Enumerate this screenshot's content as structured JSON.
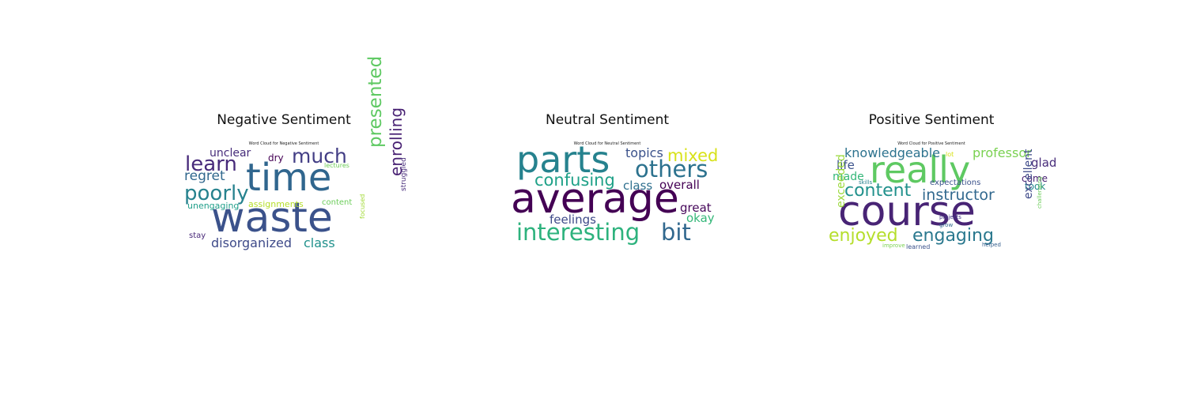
{
  "chart_data": [
    {
      "type": "wordcloud",
      "title": "Negative Sentiment",
      "subtitle": "Word Cloud for Negative Sentiment",
      "words": [
        {
          "text": "waste",
          "weight": 1.0,
          "color": "#3b528b"
        },
        {
          "text": "time",
          "weight": 0.92,
          "color": "#30668e"
        },
        {
          "text": "presented",
          "weight": 0.45,
          "color": "#5ec962",
          "vertical": true
        },
        {
          "text": "poorly",
          "weight": 0.5,
          "color": "#26828e"
        },
        {
          "text": "learn",
          "weight": 0.5,
          "color": "#472a7a"
        },
        {
          "text": "much",
          "weight": 0.48,
          "color": "#433e85"
        },
        {
          "text": "enrolling",
          "weight": 0.38,
          "color": "#482173",
          "vertical": true
        },
        {
          "text": "regret",
          "weight": 0.33,
          "color": "#31688e"
        },
        {
          "text": "disorganized",
          "weight": 0.3,
          "color": "#3e4a89"
        },
        {
          "text": "class",
          "weight": 0.3,
          "color": "#21918c"
        },
        {
          "text": "unclear",
          "weight": 0.26,
          "color": "#472d7b"
        },
        {
          "text": "dry",
          "weight": 0.24,
          "color": "#440154"
        },
        {
          "text": "unengaging",
          "weight": 0.22,
          "color": "#1f9e89"
        },
        {
          "text": "assignments",
          "weight": 0.22,
          "color": "#b5de2b"
        },
        {
          "text": "content",
          "weight": 0.2,
          "color": "#6ccd5a"
        },
        {
          "text": "stay",
          "weight": 0.2,
          "color": "#482878"
        },
        {
          "text": "struggled",
          "weight": 0.18,
          "color": "#472c7a",
          "vertical": true
        },
        {
          "text": "focused",
          "weight": 0.16,
          "color": "#a2da37",
          "vertical": true
        },
        {
          "text": "lectures",
          "weight": 0.15,
          "color": "#6ece58"
        }
      ]
    },
    {
      "type": "wordcloud",
      "title": "Neutral Sentiment",
      "subtitle": "Word Cloud for Neutral Sentiment",
      "words": [
        {
          "text": "average",
          "weight": 1.0,
          "color": "#440154"
        },
        {
          "text": "parts",
          "weight": 0.88,
          "color": "#26828e"
        },
        {
          "text": "interesting",
          "weight": 0.55,
          "color": "#2db27d"
        },
        {
          "text": "bit",
          "weight": 0.55,
          "color": "#31688e"
        },
        {
          "text": "others",
          "weight": 0.55,
          "color": "#2c728e"
        },
        {
          "text": "mixed",
          "weight": 0.4,
          "color": "#d8e219"
        },
        {
          "text": "confusing",
          "weight": 0.4,
          "color": "#1fa188"
        },
        {
          "text": "topics",
          "weight": 0.3,
          "color": "#3b528b"
        },
        {
          "text": "class",
          "weight": 0.28,
          "color": "#2e6f8e"
        },
        {
          "text": "overall",
          "weight": 0.28,
          "color": "#440154"
        },
        {
          "text": "great",
          "weight": 0.28,
          "color": "#46075a"
        },
        {
          "text": "feelings",
          "weight": 0.28,
          "color": "#3e4a89"
        },
        {
          "text": "okay",
          "weight": 0.28,
          "color": "#35b779"
        }
      ]
    },
    {
      "type": "wordcloud",
      "title": "Positive Sentiment",
      "subtitle": "Word Cloud for Positive Sentiment",
      "words": [
        {
          "text": "course",
          "weight": 1.0,
          "color": "#482475"
        },
        {
          "text": "really",
          "weight": 0.88,
          "color": "#5ec962"
        },
        {
          "text": "content",
          "weight": 0.43,
          "color": "#21918c"
        },
        {
          "text": "instructor",
          "weight": 0.36,
          "color": "#31688e"
        },
        {
          "text": "enjoyed",
          "weight": 0.43,
          "color": "#b5de2b"
        },
        {
          "text": "engaging",
          "weight": 0.43,
          "color": "#2a788e"
        },
        {
          "text": "knowledgeable",
          "weight": 0.3,
          "color": "#2c728e"
        },
        {
          "text": "professor",
          "weight": 0.3,
          "color": "#7ad151"
        },
        {
          "text": "life",
          "weight": 0.28,
          "color": "#3b528b"
        },
        {
          "text": "glad",
          "weight": 0.28,
          "color": "#472c7a"
        },
        {
          "text": "made",
          "weight": 0.26,
          "color": "#35b779"
        },
        {
          "text": "come",
          "weight": 0.24,
          "color": "#482173"
        },
        {
          "text": "took",
          "weight": 0.24,
          "color": "#24878e"
        },
        {
          "text": "exceeded",
          "weight": 0.26,
          "color": "#9bd93c",
          "vertical": true
        },
        {
          "text": "excellent",
          "weight": 0.26,
          "color": "#3e4a89",
          "vertical": true
        },
        {
          "text": "expectations",
          "weight": 0.2,
          "color": "#3b528b"
        },
        {
          "text": "lot",
          "weight": 0.16,
          "color": "#d8e219"
        },
        {
          "text": "skills",
          "weight": 0.12,
          "color": "#27808e"
        },
        {
          "text": "projects",
          "weight": 0.13,
          "color": "#443983"
        },
        {
          "text": "grow",
          "weight": 0.12,
          "color": "#31688e"
        },
        {
          "text": "learned",
          "weight": 0.16,
          "color": "#3b528b"
        },
        {
          "text": "improve",
          "weight": 0.12,
          "color": "#7ad151"
        },
        {
          "text": "helped",
          "weight": 0.12,
          "color": "#355f8d"
        },
        {
          "text": "challenging",
          "weight": 0.12,
          "color": "#6ccd5a",
          "vertical": true
        }
      ]
    }
  ]
}
